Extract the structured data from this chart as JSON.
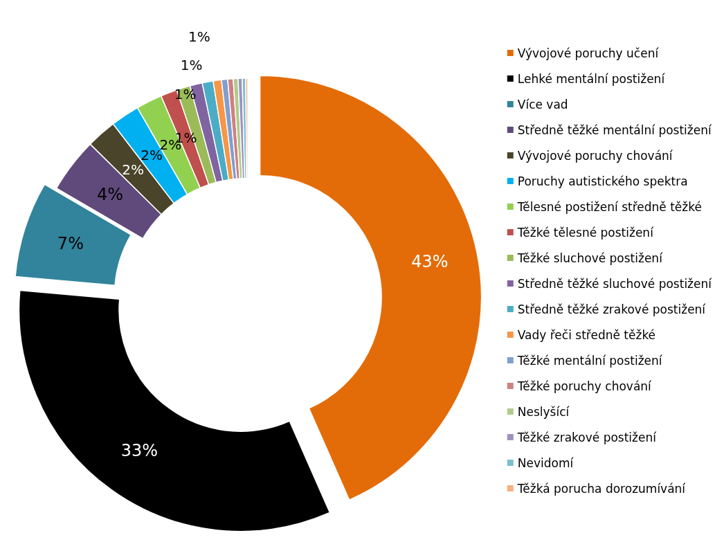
{
  "chart_data": {
    "type": "donut",
    "legend": "right",
    "categories": [
      "Vývojové poruchy učení",
      "Lehké mentální postižení",
      "Více vad",
      "Středně těžké mentální postižení",
      "Vývojové poruchy chování",
      "Poruchy autistického spektra",
      "Tělesné postižení středně těžké",
      "Těžké tělesné postižení",
      "Těžké sluchové postižení",
      "Středně těžké sluchové postižení",
      "Středně těžké zrakové postižení",
      "Vady řeči středně těžké",
      "Těžké mentální postižení",
      "Těžké poruchy chování",
      "Neslyšící",
      "Těžké zrakové postižení",
      "Nevidomí",
      "Těžká porucha dorozumívání"
    ],
    "values": [
      43.4,
      33,
      7,
      4,
      2.2,
      2.1,
      1.9,
      1.2,
      1,
      0.9,
      0.8,
      0.6,
      0.45,
      0.4,
      0.35,
      0.3,
      0.25,
      0.15
    ],
    "value_labels": [
      "43%",
      "33%",
      "7%",
      "4%",
      "2%",
      "2%",
      "2%",
      "1%",
      "1%",
      "1%",
      "1%",
      null,
      null,
      null,
      null,
      null,
      null,
      null
    ],
    "colors": [
      "#e36c09",
      "#000000",
      "#31849b",
      "#604a7b",
      "#4a452a",
      "#00b0f0",
      "#92d050",
      "#c0504d",
      "#9bbb59",
      "#8064a2",
      "#4bacc6",
      "#f79646",
      "#7f9fd0",
      "#d08080",
      "#b0cc8a",
      "#a090c0",
      "#78c0d0",
      "#fab080"
    ]
  }
}
